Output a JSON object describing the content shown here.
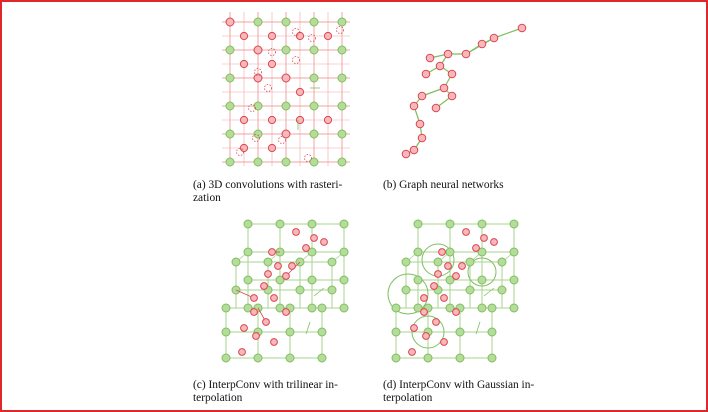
{
  "colors": {
    "border": "#e0282c",
    "red_line": "#f2a3a6",
    "red_fill": "#f7b7bb",
    "red_stroke": "#d8474f",
    "green_line": "#a8d48e",
    "green_fill": "#b6dc9d",
    "green_stroke": "#7fbf5d"
  },
  "figures": [
    {
      "id": "a",
      "caption_lines": [
        "(a) 3D convolutions with rasteri-",
        "zation"
      ]
    },
    {
      "id": "b",
      "caption_lines": [
        "(b) Graph neural networks"
      ]
    },
    {
      "id": "c",
      "caption_lines": [
        "(c) InterpConv with trilinear in-",
        "terpolation"
      ]
    },
    {
      "id": "d",
      "caption_lines": [
        "(d) InterpConv with Gaussian in-",
        "terpolation"
      ]
    }
  ]
}
